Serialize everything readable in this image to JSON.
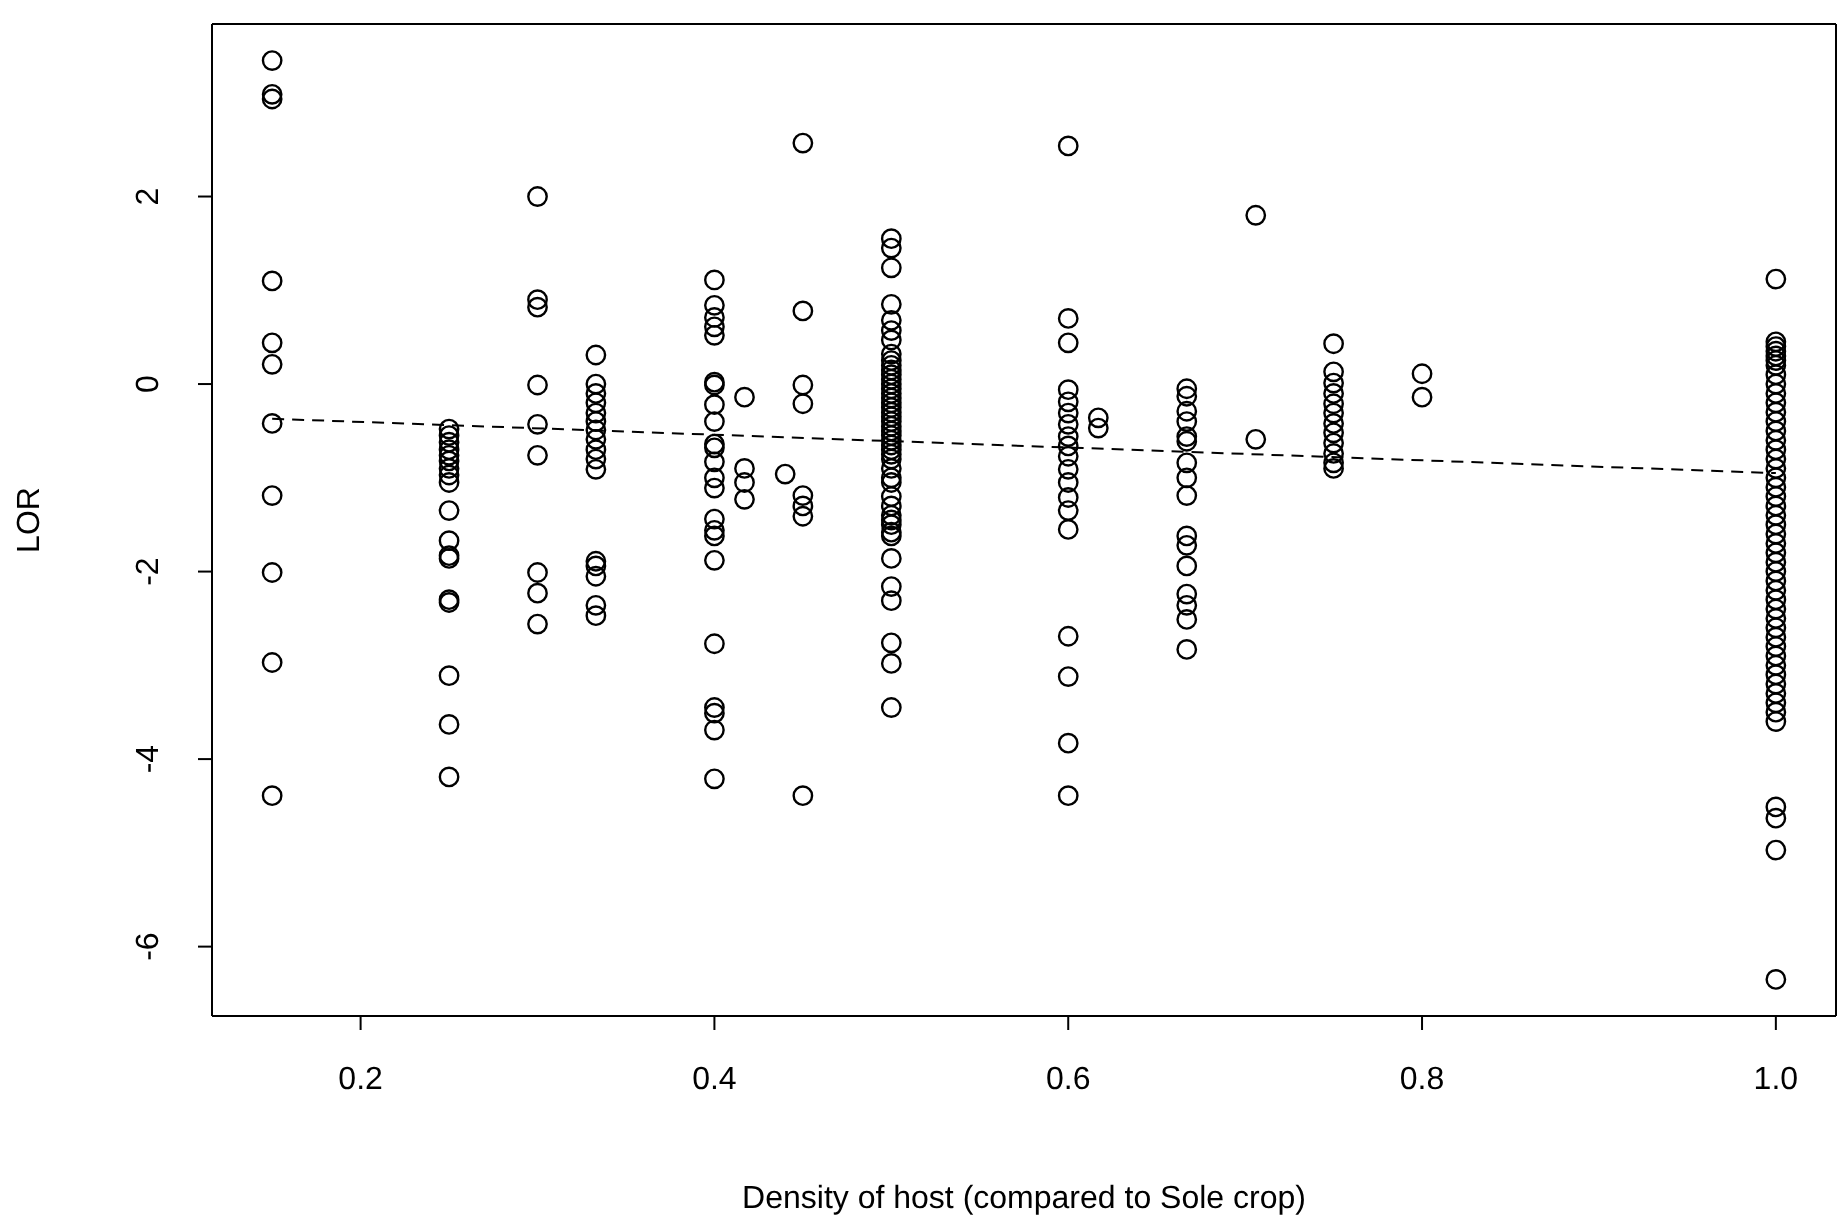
{
  "chart_data": {
    "type": "scatter",
    "xlabel": "Density of host (compared to Sole crop)",
    "ylabel": "LOR",
    "xlim": [
      0.116,
      1.034
    ],
    "ylim": [
      -6.74,
      3.84
    ],
    "xticks": [
      0.2,
      0.4,
      0.6,
      0.8,
      {
        "value": 1,
        "label": "1.0"
      }
    ],
    "yticks": [
      -6,
      -4,
      -2,
      0,
      2
    ],
    "series": [
      {
        "marker": "circle",
        "color": "#000000",
        "x": [
          0.15,
          0.15,
          0.15,
          0.15,
          0.15,
          0.15,
          0.15,
          0.15,
          0.15,
          0.15,
          0.15,
          0.25,
          0.25,
          0.25,
          0.25,
          0.25,
          0.25,
          0.25,
          0.25,
          0.25,
          0.25,
          0.25,
          0.25,
          0.25,
          0.25,
          0.25,
          0.25,
          0.25,
          0.25,
          0.3,
          0.3,
          0.3,
          0.3,
          0.3,
          0.3,
          0.3,
          0.3,
          0.3,
          0.333,
          0.333,
          0.333,
          0.333,
          0.333,
          0.333,
          0.333,
          0.333,
          0.333,
          0.333,
          0.333,
          0.333,
          0.333,
          0.333,
          0.333,
          0.333,
          0.4,
          0.4,
          0.4,
          0.4,
          0.4,
          0.4,
          0.4,
          0.4,
          0.4,
          0.4,
          0.4,
          0.4,
          0.4,
          0.4,
          0.4,
          0.4,
          0.4,
          0.4,
          0.4,
          0.4,
          0.4,
          0.4,
          0.4,
          0.417,
          0.417,
          0.417,
          0.417,
          0.44,
          0.45,
          0.45,
          0.45,
          0.45,
          0.45,
          0.45,
          0.45,
          0.45,
          0.5,
          0.5,
          0.5,
          0.5,
          0.5,
          0.5,
          0.5,
          0.5,
          0.5,
          0.5,
          0.5,
          0.5,
          0.5,
          0.5,
          0.5,
          0.5,
          0.5,
          0.5,
          0.5,
          0.5,
          0.5,
          0.5,
          0.5,
          0.5,
          0.5,
          0.5,
          0.5,
          0.5,
          0.5,
          0.5,
          0.5,
          0.5,
          0.5,
          0.5,
          0.5,
          0.5,
          0.5,
          0.5,
          0.5,
          0.5,
          0.5,
          0.5,
          0.5,
          0.5,
          0.5,
          0.5,
          0.6,
          0.6,
          0.6,
          0.6,
          0.6,
          0.6,
          0.6,
          0.6,
          0.6,
          0.6,
          0.6,
          0.6,
          0.6,
          0.6,
          0.6,
          0.6,
          0.6,
          0.6,
          0.6,
          0.617,
          0.617,
          0.667,
          0.667,
          0.667,
          0.667,
          0.667,
          0.667,
          0.667,
          0.667,
          0.667,
          0.667,
          0.667,
          0.667,
          0.667,
          0.667,
          0.667,
          0.667,
          0.706,
          0.706,
          0.75,
          0.75,
          0.75,
          0.75,
          0.75,
          0.75,
          0.75,
          0.75,
          0.75,
          0.75,
          0.75,
          0.75,
          0.8,
          0.8,
          1,
          1,
          1,
          1,
          1,
          1,
          1,
          1,
          1,
          1,
          1,
          1,
          1,
          1,
          1,
          1,
          1,
          1,
          1,
          1,
          1,
          1,
          1,
          1,
          1,
          1,
          1,
          1,
          1,
          1,
          1,
          1,
          1,
          1,
          1,
          1,
          1,
          1,
          1,
          1,
          1,
          1,
          1,
          1,
          1,
          1,
          1,
          1,
          1
        ],
        "values": [
          3.45,
          3.09,
          3.04,
          1.1,
          0.44,
          0.21,
          -0.42,
          -1.19,
          -2.01,
          -2.97,
          -4.39,
          -0.48,
          -0.55,
          -0.62,
          -0.7,
          -0.76,
          -0.82,
          -0.9,
          -0.97,
          -1.05,
          -1.35,
          -1.67,
          -1.83,
          -1.86,
          -2.3,
          -2.33,
          -3.11,
          -3.63,
          -4.19,
          2.0,
          0.9,
          0.82,
          -0.01,
          -0.43,
          -0.76,
          -2.01,
          -2.23,
          -2.56,
          0.31,
          0.0,
          -0.1,
          -0.2,
          -0.31,
          -0.4,
          -0.49,
          -0.59,
          -0.7,
          -0.8,
          -0.91,
          -1.89,
          -1.94,
          -2.05,
          -2.36,
          -2.47,
          1.11,
          0.84,
          0.71,
          0.61,
          0.52,
          0.02,
          -0.01,
          -0.22,
          -0.4,
          -0.64,
          -0.68,
          -0.83,
          -1.0,
          -1.11,
          -1.44,
          -1.56,
          -1.62,
          -1.88,
          -2.77,
          -3.45,
          -3.51,
          -3.69,
          -4.21,
          -0.14,
          -0.9,
          -1.05,
          -1.23,
          -0.96,
          2.57,
          0.78,
          -0.01,
          -0.21,
          -1.19,
          -1.3,
          -1.41,
          -4.39,
          1.55,
          1.45,
          1.24,
          0.85,
          0.68,
          0.57,
          0.47,
          0.32,
          0.25,
          0.2,
          0.15,
          0.1,
          0.05,
          0.0,
          -0.05,
          -0.1,
          -0.15,
          -0.2,
          -0.25,
          -0.3,
          -0.35,
          -0.4,
          -0.45,
          -0.5,
          -0.55,
          -0.6,
          -0.65,
          -0.7,
          -0.75,
          -0.8,
          -0.9,
          -1.0,
          -1.05,
          -1.2,
          -1.3,
          -1.4,
          -1.45,
          -1.5,
          -1.58,
          -1.62,
          -1.86,
          -2.16,
          -2.31,
          -2.76,
          -2.98,
          -3.45,
          2.54,
          0.7,
          0.44,
          -0.06,
          -0.19,
          -0.31,
          -0.43,
          -0.56,
          -0.66,
          -0.77,
          -0.91,
          -1.05,
          -1.21,
          -1.35,
          -1.55,
          -2.69,
          -3.12,
          -3.83,
          -4.39,
          -0.36,
          -0.47,
          -0.05,
          -0.13,
          -0.29,
          -0.4,
          -0.56,
          -0.61,
          -0.84,
          -1.0,
          -1.19,
          -1.62,
          -1.72,
          -1.94,
          -2.24,
          -2.36,
          -2.51,
          -2.83,
          1.8,
          -0.59,
          0.43,
          0.13,
          0.01,
          -0.1,
          -0.21,
          -0.31,
          -0.42,
          -0.52,
          -0.63,
          -0.74,
          -0.84,
          -0.9,
          0.11,
          -0.14,
          1.12,
          0.45,
          0.4,
          0.35,
          0.3,
          0.25,
          0.2,
          0.1,
          0.0,
          -0.1,
          -0.2,
          -0.3,
          -0.4,
          -0.5,
          -0.6,
          -0.7,
          -0.8,
          -0.9,
          -1.0,
          -1.1,
          -1.2,
          -1.3,
          -1.4,
          -1.5,
          -1.6,
          -1.7,
          -1.8,
          -1.9,
          -2.0,
          -2.1,
          -2.2,
          -2.3,
          -2.4,
          -2.5,
          -2.6,
          -2.7,
          -2.8,
          -2.9,
          -3.0,
          -3.1,
          -3.2,
          -3.3,
          -3.4,
          -3.5,
          -3.6,
          -4.51,
          -4.63,
          -4.97,
          -6.35
        ]
      },
      {
        "type": "line",
        "marker": "none",
        "color": "#000000",
        "line_style": "dashed",
        "x": [
          0.15,
          1.0
        ],
        "values": [
          -0.37,
          -0.95
        ]
      }
    ]
  }
}
